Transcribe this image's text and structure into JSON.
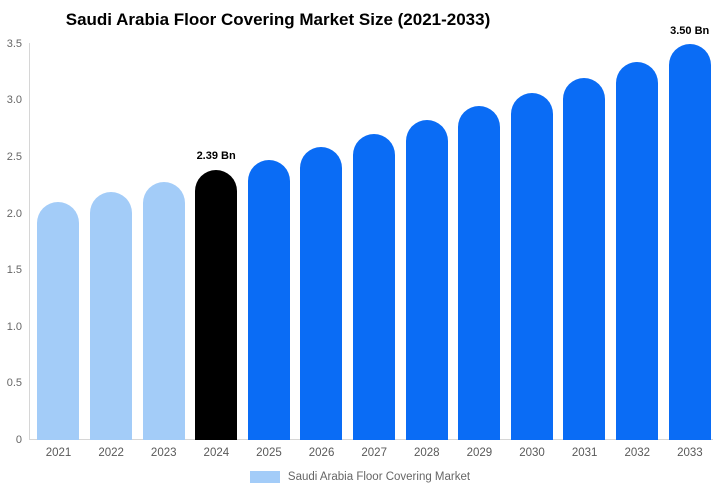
{
  "title": "Saudi Arabia Floor Covering Market Size (2021-2033)",
  "legend": {
    "label": "Saudi Arabia Floor Covering Market",
    "swatch_color": "#A3CCF8"
  },
  "colors": {
    "historical_bar": "#A3CCF8",
    "base_year_bar": "#000000",
    "forecast_bar": "#0A6CF5",
    "axis_line": "#D6D6D6",
    "tick_text": "#666666",
    "x_label_text": "#595959",
    "title_text": "#000000",
    "annotation_text": "#000000",
    "background": "#FFFFFF"
  },
  "chart_data": {
    "type": "bar",
    "title": "Saudi Arabia Floor Covering Market Size (2021-2033)",
    "value_unit": "Bn",
    "categories": [
      "2021",
      "2022",
      "2023",
      "2024",
      "2025",
      "2026",
      "2027",
      "2028",
      "2029",
      "2030",
      "2031",
      "2032",
      "2033"
    ],
    "series": [
      {
        "name": "Saudi Arabia Floor Covering Market",
        "values": [
          2.1,
          2.19,
          2.28,
          2.39,
          2.47,
          2.59,
          2.7,
          2.83,
          2.95,
          3.07,
          3.2,
          3.34,
          3.5
        ]
      }
    ],
    "bar_roles": [
      "historical",
      "historical",
      "historical",
      "base_year",
      "forecast",
      "forecast",
      "forecast",
      "forecast",
      "forecast",
      "forecast",
      "forecast",
      "forecast",
      "forecast"
    ],
    "annotations": [
      {
        "category": "2024",
        "label": "2.39 Bn"
      },
      {
        "category": "2033",
        "label": "3.50 Bn"
      }
    ],
    "y_axis": {
      "min": 0,
      "max": 3.5,
      "tick_labels": [
        "3.5",
        "3.0",
        "2.5",
        "2.0",
        "1.5",
        "1.0",
        "0.5",
        "0"
      ],
      "tick_values": [
        3.5,
        3.0,
        2.5,
        2.0,
        1.5,
        1.0,
        0.5,
        0
      ]
    },
    "grid": false,
    "legend_position": "bottom"
  }
}
